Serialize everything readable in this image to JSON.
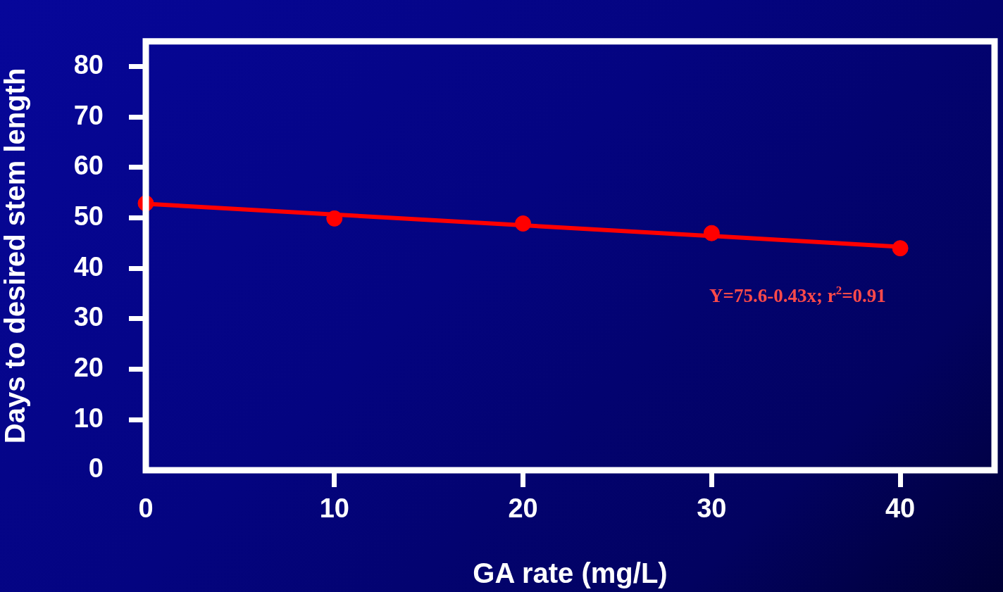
{
  "chart_data": {
    "type": "scatter",
    "xlabel": "GA rate (mg/L)",
    "ylabel": "Days to desired stem length",
    "xlim": [
      0,
      45
    ],
    "xticks": [
      0,
      10,
      20,
      30,
      40
    ],
    "ylim": [
      0,
      85
    ],
    "yticks": [
      0,
      10,
      20,
      30,
      40,
      50,
      60,
      70,
      80
    ],
    "series": [
      {
        "type": "scatter",
        "color": "#ff0000",
        "x": [
          0,
          10,
          20,
          30,
          40
        ],
        "values": [
          52.9,
          49.9,
          48.9,
          47.0,
          44.0
        ],
        "marker": "circle"
      },
      {
        "type": "line",
        "color": "#ff0000",
        "x": [
          0,
          40
        ],
        "values": [
          52.8,
          44.3
        ],
        "marker": "none",
        "line_style": "solid"
      }
    ],
    "annotations": [
      "Y=75.6-0.43x; r$^{2}$=0.91"
    ],
    "grid": false,
    "legend": false
  }
}
